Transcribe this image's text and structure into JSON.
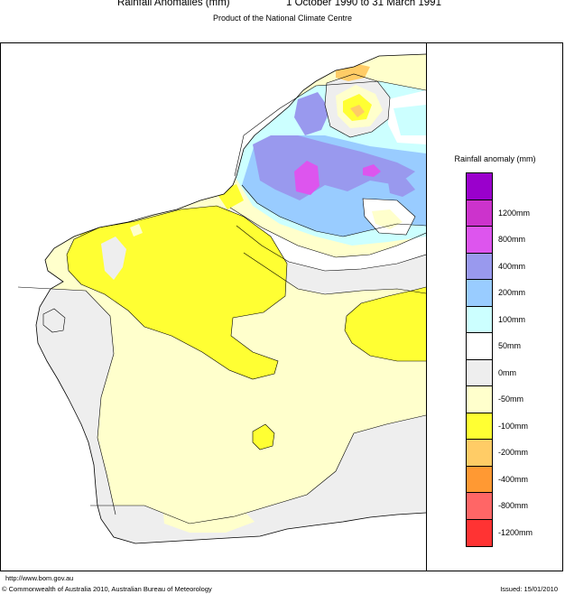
{
  "header": {
    "title": "Rainfall Anomalies (mm)",
    "period": "1 October 1990 to 31 March 1991",
    "subtitle": "Product of the National Climate Centre"
  },
  "legend": {
    "title": "Rainfall anomaly (mm)",
    "classes": [
      {
        "label": "",
        "color": "#9a00cc"
      },
      {
        "label": "1200mm",
        "color": "#cc33cc"
      },
      {
        "label": "800mm",
        "color": "#dd55ee"
      },
      {
        "label": "400mm",
        "color": "#9999ee"
      },
      {
        "label": "200mm",
        "color": "#99ccff"
      },
      {
        "label": "100mm",
        "color": "#ccffff"
      },
      {
        "label": "50mm",
        "color": "#ffffff"
      },
      {
        "label": "0mm",
        "color": "#eeeeee"
      },
      {
        "label": "-50mm",
        "color": "#ffffcc"
      },
      {
        "label": "-100mm",
        "color": "#ffff33"
      },
      {
        "label": "-200mm",
        "color": "#ffcc66"
      },
      {
        "label": "-400mm",
        "color": "#ff9933"
      },
      {
        "label": "-800mm",
        "color": "#ff6666"
      },
      {
        "label": "-1200mm",
        "color": "#ff3333"
      }
    ]
  },
  "footer": {
    "url": "http://www.bom.gov.au",
    "copyright": "© Commonwealth of Australia 2010, Australian Bureau of Meteorology",
    "issued": "Issued: 15/01/2010"
  }
}
